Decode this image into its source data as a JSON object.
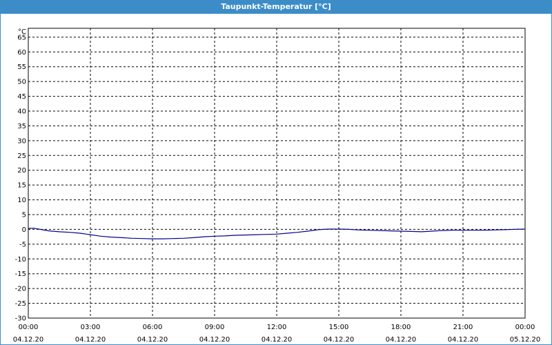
{
  "window": {
    "title": "Taupunkt-Temperatur [°C]"
  },
  "colors": {
    "titlebar": "#3c8dc7",
    "series": "#00008b",
    "grid": "#000000"
  },
  "chart_data": {
    "type": "line",
    "title": "Taupunkt-Temperatur [°C]",
    "ylabel": "°C",
    "xlabel": "",
    "ylim": [
      -30,
      68
    ],
    "yticks": [
      65,
      60,
      55,
      50,
      45,
      40,
      35,
      30,
      25,
      20,
      15,
      10,
      5,
      0,
      -5,
      -10,
      -15,
      -20,
      -25,
      -30
    ],
    "xlim_hours": [
      0,
      24
    ],
    "xticks": [
      {
        "time": "00:00",
        "date": "04.12.20"
      },
      {
        "time": "03:00",
        "date": "04.12.20"
      },
      {
        "time": "06:00",
        "date": "04.12.20"
      },
      {
        "time": "09:00",
        "date": "04.12.20"
      },
      {
        "time": "12:00",
        "date": "04.12.20"
      },
      {
        "time": "15:00",
        "date": "04.12.20"
      },
      {
        "time": "18:00",
        "date": "04.12.20"
      },
      {
        "time": "21:00",
        "date": "04.12.20"
      },
      {
        "time": "00:00",
        "date": "05.12.20"
      }
    ],
    "grid": true,
    "series": [
      {
        "x": [
          0,
          0.25,
          0.5,
          1,
          1.5,
          2,
          2.5,
          3,
          3.5,
          4,
          4.5,
          5,
          5.5,
          6,
          6.5,
          7,
          7.5,
          8,
          8.5,
          9,
          9.5,
          10,
          10.5,
          11,
          11.5,
          12,
          12.5,
          13,
          13.5,
          14,
          14.5,
          15,
          15.5,
          16,
          16.5,
          17,
          17.5,
          18,
          18.5,
          19,
          19.5,
          20,
          20.5,
          21,
          21.5,
          22,
          22.5,
          23,
          23.5,
          24
        ],
        "y": [
          0.3,
          0.4,
          0.1,
          -0.5,
          -0.8,
          -1.0,
          -1.3,
          -1.8,
          -2.3,
          -2.6,
          -2.8,
          -3.0,
          -3.1,
          -3.2,
          -3.2,
          -3.1,
          -3.0,
          -2.8,
          -2.5,
          -2.3,
          -2.2,
          -2.0,
          -1.9,
          -1.8,
          -1.7,
          -1.6,
          -1.3,
          -1.0,
          -0.6,
          -0.1,
          0.1,
          0.1,
          0.0,
          -0.2,
          -0.3,
          -0.4,
          -0.5,
          -0.6,
          -0.7,
          -0.8,
          -0.6,
          -0.4,
          -0.3,
          -0.3,
          -0.3,
          -0.3,
          -0.2,
          -0.1,
          0.0,
          0.1
        ]
      }
    ]
  }
}
